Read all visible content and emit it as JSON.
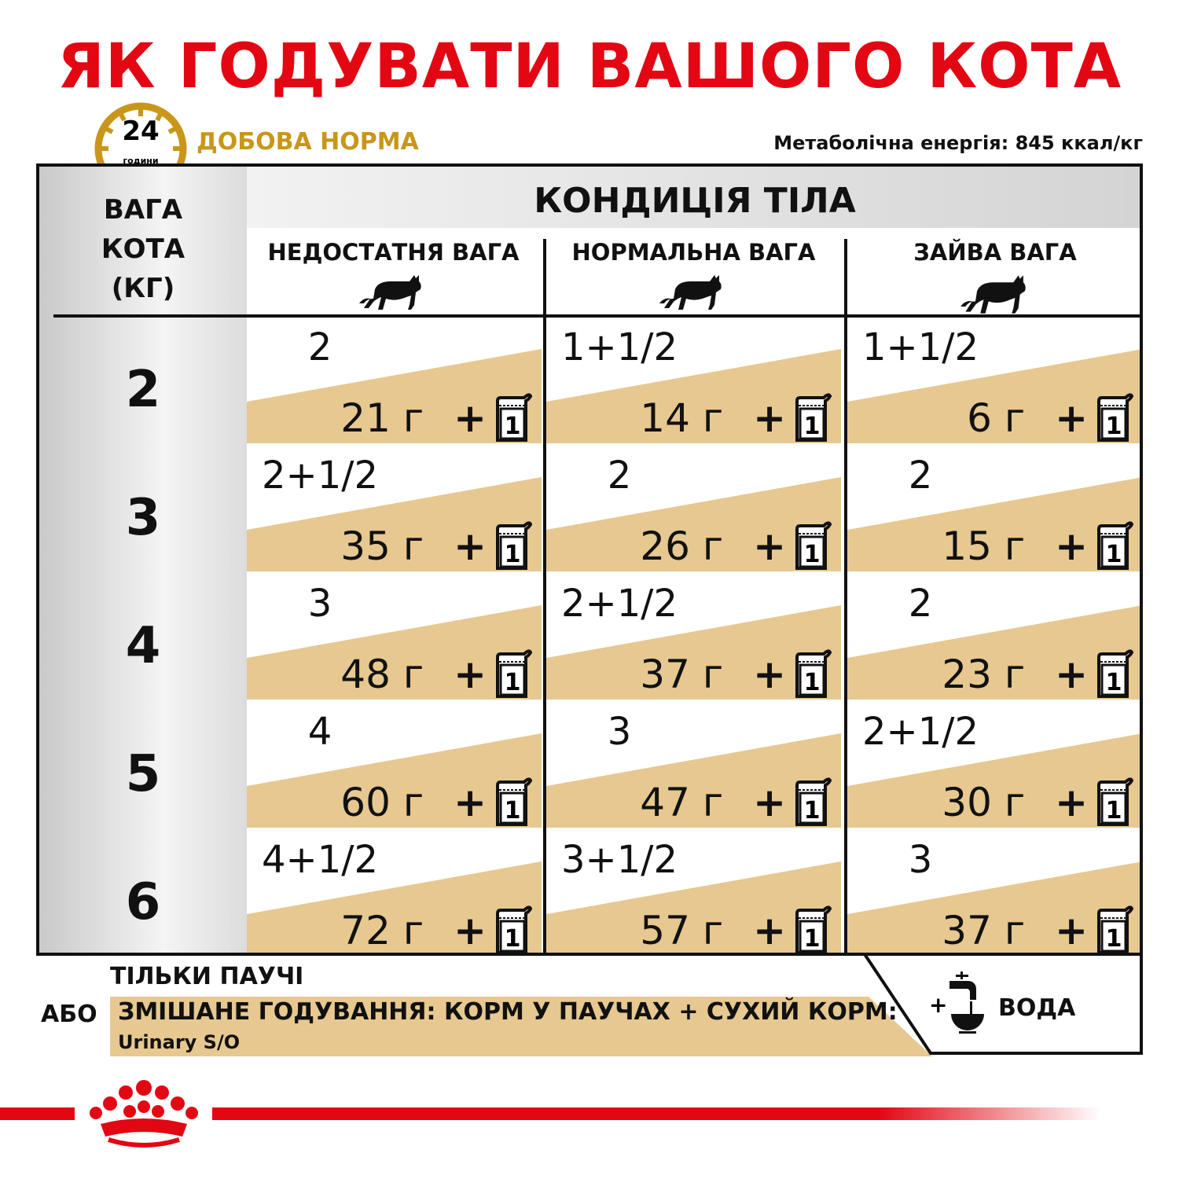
{
  "title": "ЯК ГОДУВАТИ ВАШОГО КОТА",
  "clock": {
    "hours": "24",
    "unit": "години"
  },
  "daily_norm": "ДОБОВА НОРМА",
  "energy": "Метаболічна енергія: 845 ккал/кг",
  "table": {
    "weight_header": [
      "ВАГА",
      "КОТА",
      "(КГ)"
    ],
    "condition_header": "КОНДИЦІЯ ТІЛА",
    "columns": [
      "НЕДОСТАТНЯ ВАГА",
      "НОРМАЛЬНА ВАГА",
      "ЗАЙВА ВАГА"
    ],
    "pouch_count": "1",
    "gram_unit": "г",
    "plus": "+",
    "rows": [
      {
        "weight": "2",
        "cells": [
          {
            "pouches": "2",
            "grams": "21"
          },
          {
            "pouches": "1+1/2",
            "grams": "14"
          },
          {
            "pouches": "1+1/2",
            "grams": "6"
          }
        ]
      },
      {
        "weight": "3",
        "cells": [
          {
            "pouches": "2+1/2",
            "grams": "35"
          },
          {
            "pouches": "2",
            "grams": "26"
          },
          {
            "pouches": "2",
            "grams": "15"
          }
        ]
      },
      {
        "weight": "4",
        "cells": [
          {
            "pouches": "3",
            "grams": "48"
          },
          {
            "pouches": "2+1/2",
            "grams": "37"
          },
          {
            "pouches": "2",
            "grams": "23"
          }
        ]
      },
      {
        "weight": "5",
        "cells": [
          {
            "pouches": "4",
            "grams": "60"
          },
          {
            "pouches": "3",
            "grams": "47"
          },
          {
            "pouches": "2+1/2",
            "grams": "30"
          }
        ]
      },
      {
        "weight": "6",
        "cells": [
          {
            "pouches": "4+1/2",
            "grams": "72"
          },
          {
            "pouches": "3+1/2",
            "grams": "57"
          },
          {
            "pouches": "3",
            "grams": "37"
          }
        ]
      }
    ]
  },
  "legend": {
    "only_pouches": "ТІЛЬКИ ПАУЧІ",
    "or": "АБО",
    "mixed": "ЗМІШАНЕ ГОДУВАННЯ: КОРМ У ПАУЧАХ + СУХИЙ КОРМ:",
    "mixed_product": "Urinary S/O",
    "water_plus": "+",
    "water": "ВОДА"
  },
  "colors": {
    "brand_red": "#e30613",
    "gold": "#c9961a",
    "beige": "#e6c890"
  }
}
